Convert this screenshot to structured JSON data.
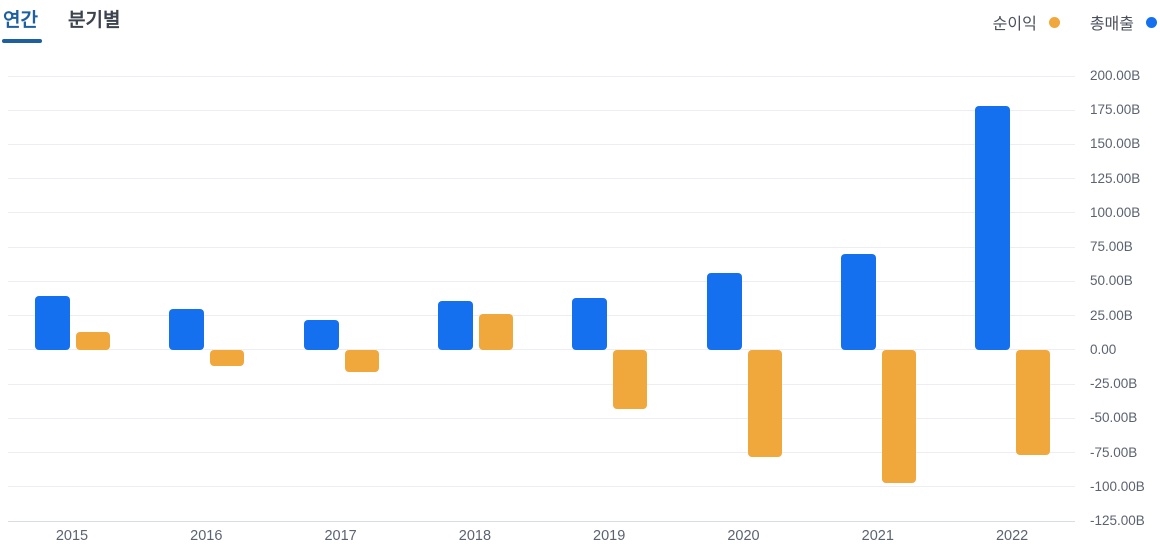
{
  "tabs": {
    "annual": "연간",
    "quarterly": "분기별"
  },
  "legend": [
    {
      "label": "순이익",
      "color": "#f0a83c"
    },
    {
      "label": "총매출",
      "color": "#1570ef"
    }
  ],
  "colors": {
    "revenue_blue": "#1570ef",
    "net_income_orange": "#f0a83c",
    "tab_active": "#1d5f9f",
    "gridline": "#ededf2",
    "axis_text": "#5c6370"
  },
  "chart_data": {
    "type": "bar",
    "categories": [
      "2015",
      "2016",
      "2017",
      "2018",
      "2019",
      "2020",
      "2021",
      "2022"
    ],
    "series": [
      {
        "name": "총매출",
        "color": "#1570ef",
        "values": [
          39,
          30,
          22,
          36,
          38,
          56,
          70,
          178
        ]
      },
      {
        "name": "순이익",
        "color": "#f0a83c",
        "values": [
          13,
          -12,
          -16,
          26,
          -43,
          -78,
          -97,
          -77
        ]
      }
    ],
    "title": "",
    "xlabel": "",
    "ylabel": "",
    "unit": "B",
    "ylim": [
      -125,
      200
    ],
    "ytick_step": 25,
    "yticks": [
      200,
      175,
      150,
      125,
      100,
      75,
      50,
      25,
      0,
      -25,
      -50,
      -75,
      -100,
      -125
    ],
    "ytick_labels": [
      "200.00B",
      "175.00B",
      "150.00B",
      "125.00B",
      "100.00B",
      "75.00B",
      "50.00B",
      "25.00B",
      "0.00",
      "-25.00B",
      "-50.00B",
      "-75.00B",
      "-100.00B",
      "-125.00B"
    ],
    "grid": true,
    "legend_position": "top-right"
  }
}
